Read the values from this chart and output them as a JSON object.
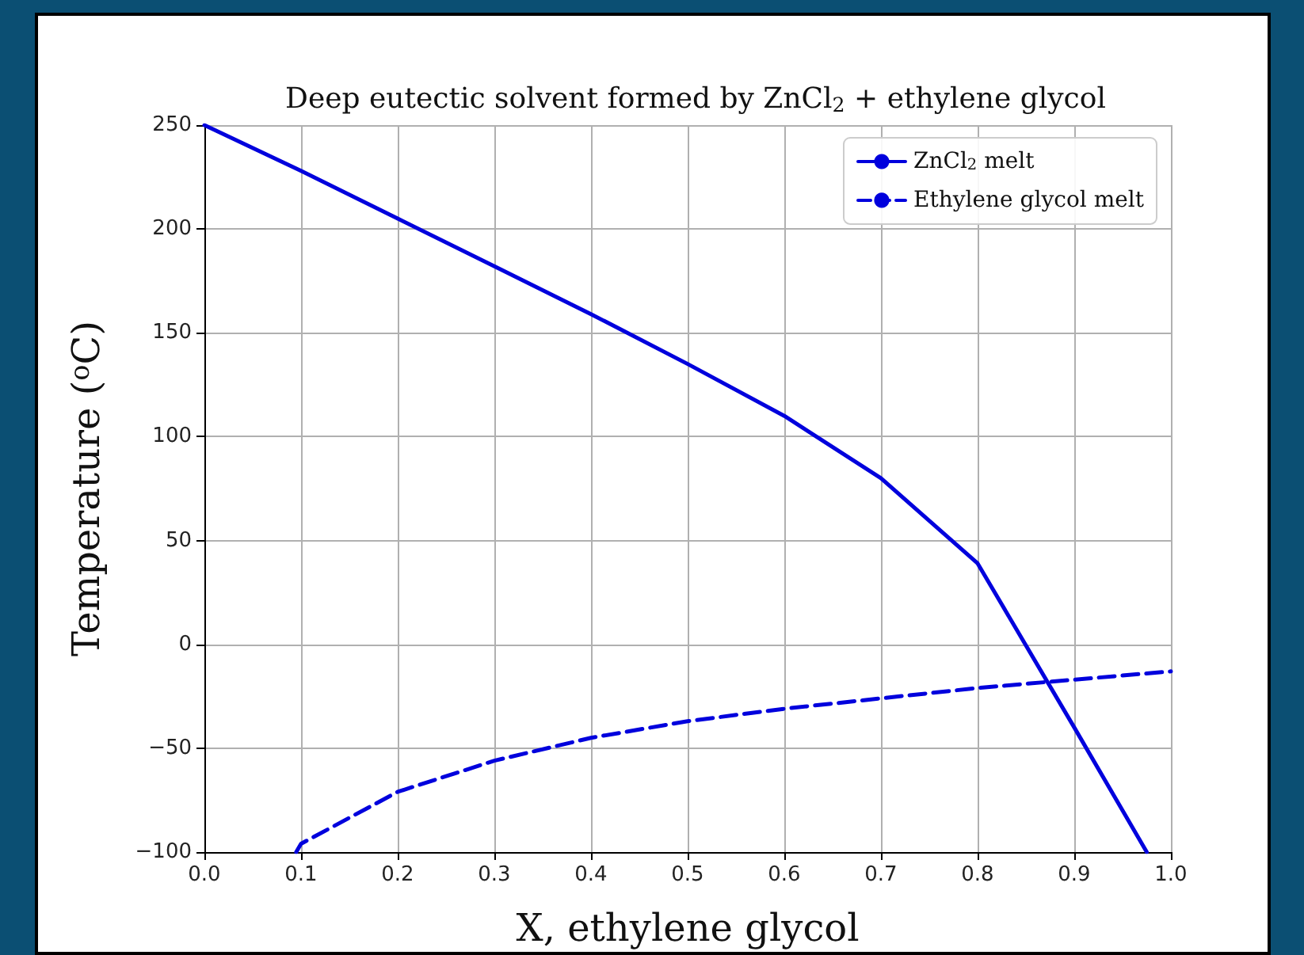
{
  "chart_data": {
    "type": "line",
    "title": "Deep eutectic solvent formed by ZnCl$_{2}$ + ethylene glycol",
    "xlabel": "X, ethylene glycol",
    "ylabel": "Temperature ($^{o}$C)",
    "xlim": [
      0,
      1
    ],
    "xticks": [
      {
        "value": 0,
        "label": "0.0"
      },
      0.1,
      0.2,
      0.3,
      0.4,
      0.5,
      0.6,
      0.7,
      0.8,
      0.9,
      {
        "value": 1,
        "label": "1.0"
      }
    ],
    "ylim": [
      -100,
      250
    ],
    "yticks": [
      {
        "value": -100,
        "label": "−100"
      },
      {
        "value": -50,
        "label": "−50"
      },
      0,
      50,
      100,
      150,
      200,
      250
    ],
    "grid": true,
    "legend": "top right",
    "marker": "none",
    "series": [
      {
        "name": "ZnCl$_{2}$ melt",
        "color": "#0000dd",
        "line_style": "solid",
        "x": [
          0,
          0.1,
          0.2,
          0.3,
          0.4,
          0.5,
          0.6,
          0.7,
          0.8,
          0.9,
          0.975
        ],
        "values": [
          250,
          228,
          205,
          182,
          159,
          135,
          110,
          80,
          39,
          -40,
          -100
        ]
      },
      {
        "name": "Ethylene glycol melt",
        "color": "#0000dd",
        "line_style": "dashed",
        "x": [
          0.095,
          0.1,
          0.2,
          0.3,
          0.4,
          0.5,
          0.6,
          0.7,
          0.8,
          0.9,
          1.0
        ],
        "values": [
          -100,
          -96,
          -71,
          -56,
          -45,
          -37,
          -31,
          -26,
          -21,
          -17,
          -13
        ]
      }
    ]
  }
}
